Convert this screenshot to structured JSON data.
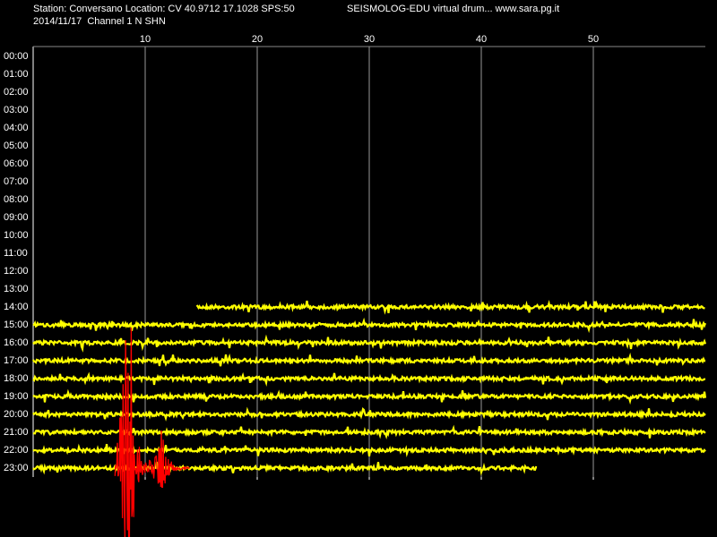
{
  "chart_data": {
    "type": "drum",
    "title": "Station: Conversano Location: CV 40.9712 17.1028 SPS:50",
    "subtitle": "2014/11/17  Channel 1 N SHN",
    "header_right": "SEISMOLOG-EDU virtual drum... www.sara.pg.it",
    "categories": [
      "00:00",
      "01:00",
      "02:00",
      "03:00",
      "04:00",
      "05:00",
      "06:00",
      "07:00",
      "08:00",
      "09:00",
      "10:00",
      "11:00",
      "12:00",
      "13:00",
      "14:00",
      "15:00",
      "16:00",
      "17:00",
      "18:00",
      "19:00",
      "20:00",
      "21:00",
      "22:00",
      "23:00"
    ],
    "xlim": [
      0,
      60
    ],
    "xticks": [
      10,
      20,
      30,
      40,
      50
    ],
    "grid": true,
    "color": "#ffff00",
    "traces": [
      null,
      null,
      null,
      null,
      null,
      null,
      null,
      null,
      null,
      null,
      null,
      null,
      null,
      null,
      {
        "start": 14.6,
        "end": 60
      },
      {
        "start": 0,
        "end": 60
      },
      {
        "start": 0,
        "end": 60
      },
      {
        "start": 0,
        "end": 60
      },
      {
        "start": 0,
        "end": 60
      },
      {
        "start": 0,
        "end": 60
      },
      {
        "start": 0,
        "end": 60
      },
      {
        "start": 0,
        "end": 60
      },
      {
        "start": 0,
        "end": 60
      },
      {
        "start": 0,
        "end": 45
      }
    ],
    "event": {
      "start": 7.3,
      "end": 14.0,
      "color": "#ff0000"
    }
  }
}
